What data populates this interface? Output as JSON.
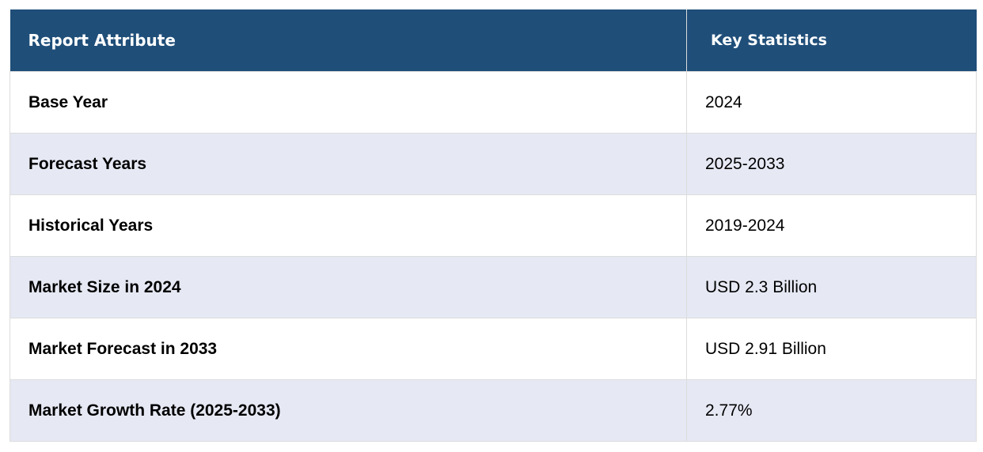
{
  "table": {
    "headers": {
      "attribute": "Report Attribute",
      "statistics": "Key Statistics"
    },
    "rows": [
      {
        "attribute": "Base Year",
        "value": "2024"
      },
      {
        "attribute": "Forecast Years",
        "value": "2025-2033"
      },
      {
        "attribute": "Historical Years",
        "value": "2019-2024"
      },
      {
        "attribute": "Market Size in 2024",
        "value": "USD 2.3 Billion"
      },
      {
        "attribute": "Market Forecast in 2033",
        "value": "USD 2.91 Billion"
      },
      {
        "attribute": "Market Growth Rate (2025-2033)",
        "value": "2.77%"
      }
    ]
  },
  "colors": {
    "header_bg": "#1f4e79",
    "header_text": "#ffffff",
    "alt_row_bg": "#e6e9f4",
    "row_bg": "#ffffff",
    "border": "#dcdcdc"
  }
}
